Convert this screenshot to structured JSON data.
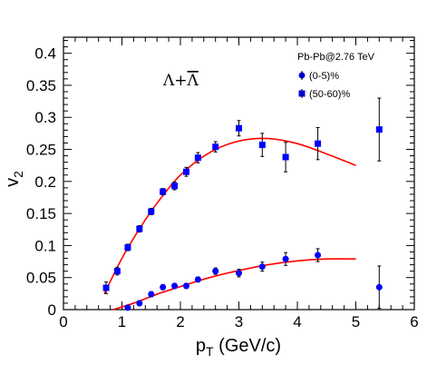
{
  "chart_data": {
    "type": "scatter",
    "title": "",
    "xlabel": "p",
    "xlabel_sub": "T",
    "xlabel_unit": " (GeV/c)",
    "ylabel": "v",
    "ylabel_sub": "2",
    "xlim": [
      0,
      6
    ],
    "ylim": [
      0,
      0.425
    ],
    "x_ticks": [
      0,
      1,
      2,
      3,
      4,
      5,
      6
    ],
    "y_ticks": [
      0,
      0.05,
      0.1,
      0.15,
      0.2,
      0.25,
      0.3,
      0.35,
      0.4
    ],
    "grid": false,
    "legend": {
      "placement": "top-right",
      "header": "Pb-Pb@2.76 TeV",
      "entries": [
        "(0-5)%",
        "(50-60)%"
      ]
    },
    "annotation": {
      "base": "Λ+",
      "bar": "Λ"
    },
    "fit_color": "#ff0000",
    "marker_color": "#0000ff",
    "series": [
      {
        "name": "(0-5)%",
        "marker": "circle",
        "points": [
          {
            "x": 1.1,
            "y": 0.003,
            "err": 0.004
          },
          {
            "x": 1.3,
            "y": 0.01,
            "err": 0.004
          },
          {
            "x": 1.5,
            "y": 0.024,
            "err": 0.004
          },
          {
            "x": 1.7,
            "y": 0.035,
            "err": 0.004
          },
          {
            "x": 1.9,
            "y": 0.037,
            "err": 0.004
          },
          {
            "x": 2.1,
            "y": 0.037,
            "err": 0.004
          },
          {
            "x": 2.3,
            "y": 0.047,
            "err": 0.004
          },
          {
            "x": 2.6,
            "y": 0.06,
            "err": 0.005
          },
          {
            "x": 3.0,
            "y": 0.057,
            "err": 0.006
          },
          {
            "x": 3.4,
            "y": 0.067,
            "err": 0.007
          },
          {
            "x": 3.8,
            "y": 0.079,
            "err": 0.01
          },
          {
            "x": 4.35,
            "y": 0.085,
            "err": 0.01
          },
          {
            "x": 5.4,
            "y": 0.035,
            "err": 0.033
          }
        ]
      },
      {
        "name": "(50-60)%",
        "marker": "square",
        "points": [
          {
            "x": 0.73,
            "y": 0.034,
            "err": 0.009
          },
          {
            "x": 0.92,
            "y": 0.06,
            "err": 0.006
          },
          {
            "x": 1.1,
            "y": 0.097,
            "err": 0.005
          },
          {
            "x": 1.3,
            "y": 0.126,
            "err": 0.005
          },
          {
            "x": 1.5,
            "y": 0.153,
            "err": 0.005
          },
          {
            "x": 1.7,
            "y": 0.184,
            "err": 0.005
          },
          {
            "x": 1.9,
            "y": 0.193,
            "err": 0.006
          },
          {
            "x": 2.1,
            "y": 0.215,
            "err": 0.007
          },
          {
            "x": 2.3,
            "y": 0.237,
            "err": 0.008
          },
          {
            "x": 2.6,
            "y": 0.254,
            "err": 0.008
          },
          {
            "x": 3.0,
            "y": 0.283,
            "err": 0.012
          },
          {
            "x": 3.4,
            "y": 0.257,
            "err": 0.018
          },
          {
            "x": 3.8,
            "y": 0.238,
            "err": 0.023
          },
          {
            "x": 4.35,
            "y": 0.259,
            "err": 0.025
          },
          {
            "x": 5.4,
            "y": 0.281,
            "err": 0.049
          }
        ]
      }
    ],
    "fits": [
      {
        "name": "(50-60)%",
        "points": [
          [
            0.7,
            0.025
          ],
          [
            1.0,
            0.08
          ],
          [
            1.3,
            0.126
          ],
          [
            1.6,
            0.166
          ],
          [
            2.0,
            0.21
          ],
          [
            2.5,
            0.245
          ],
          [
            3.0,
            0.263
          ],
          [
            3.5,
            0.267
          ],
          [
            4.0,
            0.259
          ],
          [
            4.5,
            0.243
          ],
          [
            5.0,
            0.225
          ]
        ]
      },
      {
        "name": "(0-5)%",
        "points": [
          [
            0.85,
            0.0
          ],
          [
            1.2,
            0.01
          ],
          [
            1.6,
            0.024
          ],
          [
            2.0,
            0.036
          ],
          [
            2.5,
            0.05
          ],
          [
            3.0,
            0.061
          ],
          [
            3.5,
            0.07
          ],
          [
            4.0,
            0.076
          ],
          [
            4.5,
            0.079
          ],
          [
            5.0,
            0.079
          ]
        ]
      }
    ]
  }
}
